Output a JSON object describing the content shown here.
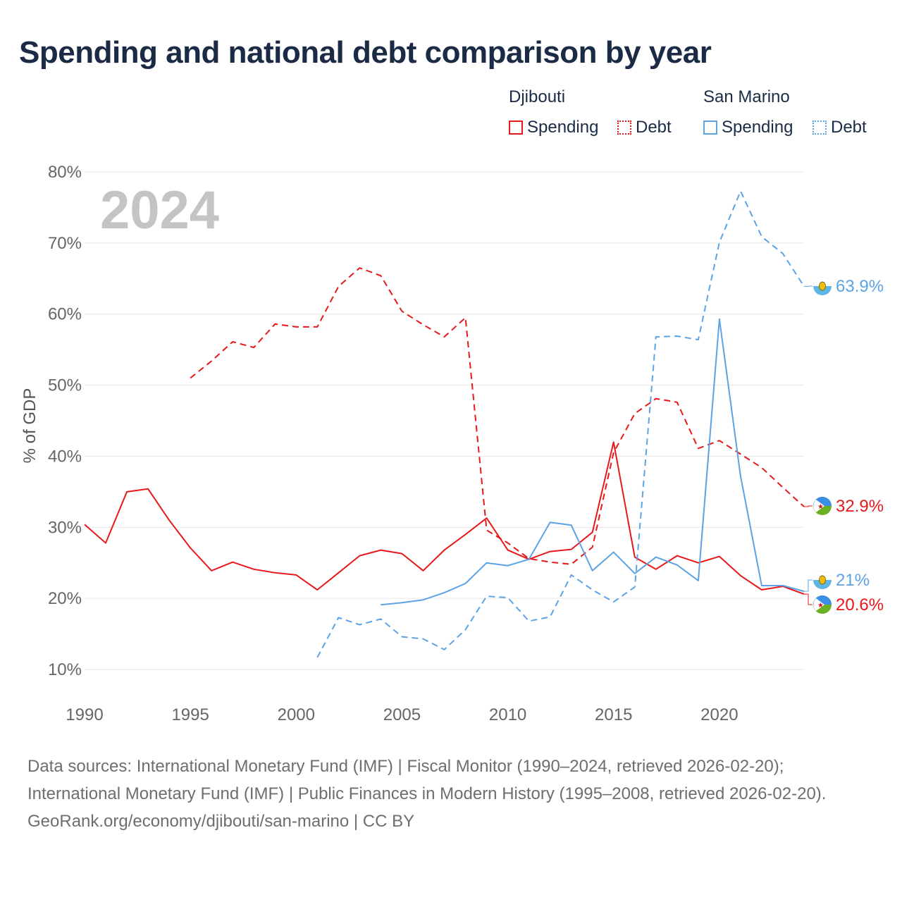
{
  "title": "Spending and national debt comparison by year",
  "legend": {
    "groups": [
      {
        "country": "Djibouti",
        "color": "#e8181a",
        "items": [
          {
            "label": "Spending",
            "style": "solid"
          },
          {
            "label": "Debt",
            "style": "dotted"
          }
        ]
      },
      {
        "country": "San Marino",
        "color": "#5ba3e6",
        "items": [
          {
            "label": "Spending",
            "style": "solid"
          },
          {
            "label": "Debt",
            "style": "dotted"
          }
        ]
      }
    ]
  },
  "year_watermark": "2024",
  "chart_data": {
    "type": "line",
    "title": "Spending and national debt comparison by year",
    "xlabel": "",
    "ylabel": "% of GDP",
    "xlim": [
      1990,
      2024
    ],
    "ylim": [
      5,
      80
    ],
    "x_ticks": [
      1990,
      1995,
      2000,
      2005,
      2010,
      2015,
      2020
    ],
    "x_tick_labels": [
      "1990",
      "1995",
      "2000",
      "2005",
      "2010",
      "2015",
      "2020"
    ],
    "y_ticks": [
      10,
      20,
      30,
      40,
      50,
      60,
      70,
      80
    ],
    "y_tick_labels": [
      "10%",
      "20%",
      "30%",
      "40%",
      "50%",
      "60%",
      "70%",
      "80%"
    ],
    "grid": true,
    "series": [
      {
        "name": "Djibouti Spending",
        "country": "Djibouti",
        "measure": "Spending",
        "color": "#e8181a",
        "dash": "solid",
        "x": [
          1990,
          1991,
          1992,
          1993,
          1994,
          1995,
          1996,
          1997,
          1998,
          1999,
          2000,
          2001,
          2002,
          2003,
          2004,
          2005,
          2006,
          2007,
          2008,
          2009,
          2010,
          2011,
          2012,
          2013,
          2014,
          2015,
          2016,
          2017,
          2018,
          2019,
          2020,
          2021,
          2022,
          2023,
          2024
        ],
        "values": [
          30.4,
          27.8,
          35.0,
          35.4,
          31.0,
          27.1,
          23.9,
          25.1,
          24.1,
          23.6,
          23.3,
          21.2,
          23.6,
          26.0,
          26.8,
          26.3,
          23.9,
          26.8,
          29.0,
          31.3,
          26.8,
          25.5,
          26.6,
          26.9,
          29.3,
          42.0,
          25.8,
          24.1,
          26.0,
          25.0,
          25.9,
          23.2,
          21.2,
          21.7,
          20.6
        ],
        "end_label": "20.6%"
      },
      {
        "name": "Djibouti Debt",
        "country": "Djibouti",
        "measure": "Debt",
        "color": "#e8181a",
        "dash": "dashed",
        "x": [
          1995,
          1996,
          1997,
          1998,
          1999,
          2000,
          2001,
          2002,
          2003,
          2004,
          2005,
          2006,
          2007,
          2008,
          2009,
          2010,
          2011,
          2012,
          2013,
          2014,
          2015,
          2016,
          2017,
          2018,
          2019,
          2020,
          2021,
          2022,
          2023,
          2024
        ],
        "values": [
          51.0,
          53.4,
          56.1,
          55.3,
          58.6,
          58.2,
          58.2,
          63.9,
          66.5,
          65.4,
          60.4,
          58.5,
          56.8,
          59.5,
          29.6,
          27.8,
          25.6,
          25.1,
          24.8,
          27.2,
          40.5,
          46.0,
          48.1,
          47.6,
          41.1,
          42.2,
          40.3,
          38.4,
          35.6,
          32.9
        ],
        "end_label": "32.9%"
      },
      {
        "name": "San Marino Spending",
        "country": "San Marino",
        "measure": "Spending",
        "color": "#5ba3e6",
        "dash": "solid",
        "x": [
          2004,
          2005,
          2006,
          2007,
          2008,
          2009,
          2010,
          2011,
          2012,
          2013,
          2014,
          2015,
          2016,
          2017,
          2018,
          2019,
          2020,
          2021,
          2022,
          2023,
          2024
        ],
        "values": [
          19.1,
          19.4,
          19.8,
          20.8,
          22.1,
          25.0,
          24.6,
          25.5,
          30.7,
          30.3,
          23.9,
          26.5,
          23.5,
          25.8,
          24.7,
          22.5,
          59.3,
          37.2,
          21.8,
          21.8,
          21.0
        ],
        "end_label": "21%"
      },
      {
        "name": "San Marino Debt",
        "country": "San Marino",
        "measure": "Debt",
        "color": "#5ba3e6",
        "dash": "dashed",
        "x": [
          2001,
          2002,
          2003,
          2004,
          2005,
          2006,
          2007,
          2008,
          2009,
          2010,
          2011,
          2012,
          2013,
          2014,
          2015,
          2016,
          2017,
          2018,
          2019,
          2020,
          2021,
          2022,
          2023,
          2024
        ],
        "values": [
          11.7,
          17.3,
          16.3,
          17.1,
          14.6,
          14.3,
          12.8,
          15.6,
          20.3,
          20.1,
          16.8,
          17.4,
          23.3,
          21.2,
          19.5,
          21.6,
          56.8,
          56.9,
          56.4,
          70.1,
          77.3,
          70.9,
          68.5,
          63.9
        ],
        "end_label": "63.9%"
      }
    ]
  },
  "footer": {
    "sources": "Data sources: International Monetary Fund (IMF) | Fiscal Monitor (1990–2024, retrieved 2026-02-20); International Monetary Fund (IMF) | Public Finances in Modern History (1995–2008, retrieved 2026-02-20).",
    "attribution": "GeoRank.org/economy/djibouti/san-marino | CC BY"
  }
}
